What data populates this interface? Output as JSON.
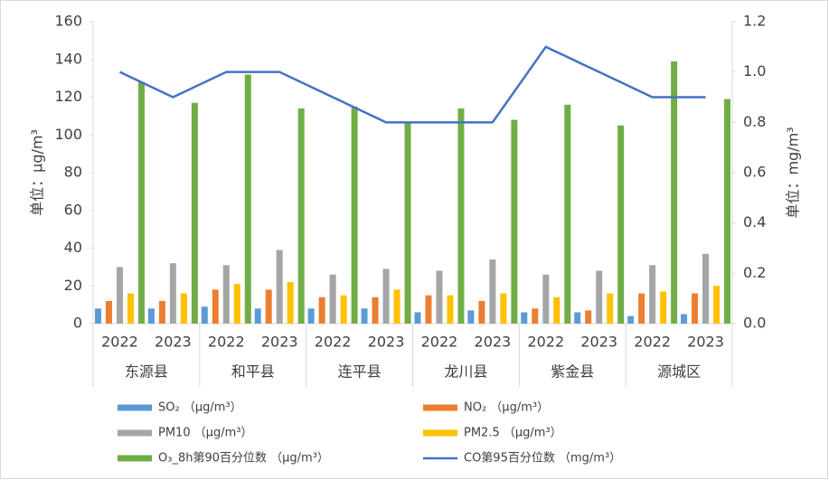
{
  "chart_data": {
    "type": "bar",
    "categories": [
      "2022",
      "2023",
      "2022",
      "2023",
      "2022",
      "2023",
      "2022",
      "2023",
      "2022",
      "2023",
      "2022",
      "2023"
    ],
    "category_groups": [
      "东源县",
      "和平县",
      "连平县",
      "龙川县",
      "紫金县",
      "源城区"
    ],
    "y_label": "单位：μg/m³",
    "y2_label": "单位：mg/m³",
    "ylim": [
      0,
      160
    ],
    "yticks": [
      0,
      20,
      40,
      60,
      80,
      100,
      120,
      140,
      160
    ],
    "y2lim": [
      0,
      1.2
    ],
    "y2ticks": [
      {
        "value": 0,
        "label": "0.0"
      },
      0.2,
      0.4,
      0.6,
      0.8,
      {
        "value": 1,
        "label": "1.0"
      },
      1.2
    ],
    "series": [
      {
        "name": "SO₂ （μg/m³）",
        "color": "#5b9bd5",
        "values": [
          8,
          8,
          9,
          8,
          8,
          8,
          6,
          7,
          6,
          6,
          4,
          5
        ]
      },
      {
        "name": "NO₂ （μg/m³）",
        "color": "#ed7d31",
        "values": [
          12,
          12,
          18,
          18,
          14,
          14,
          15,
          12,
          8,
          7,
          16,
          16
        ]
      },
      {
        "name": "PM10 （μg/m³）",
        "color": "#a5a5a5",
        "values": [
          30,
          32,
          31,
          39,
          26,
          29,
          28,
          34,
          26,
          28,
          31,
          37
        ]
      },
      {
        "name": "PM2.5 （μg/m³）",
        "color": "#ffc000",
        "values": [
          16,
          16,
          21,
          22,
          15,
          18,
          15,
          16,
          14,
          16,
          17,
          20
        ]
      },
      {
        "name": "O₃_8h第90百分位数 （μg/m³）",
        "color": "#70ad47",
        "values": [
          128,
          117,
          132,
          114,
          115,
          107,
          114,
          108,
          116,
          105,
          139,
          119
        ]
      },
      {
        "name": "CO第95百分位数 （mg/m³）",
        "color": "#4472c4",
        "type": "line",
        "axis": "y2",
        "values": [
          1.0,
          0.9,
          1.0,
          1.0,
          0.9,
          0.8,
          0.8,
          0.8,
          1.1,
          1.0,
          0.9,
          0.9
        ]
      }
    ]
  }
}
